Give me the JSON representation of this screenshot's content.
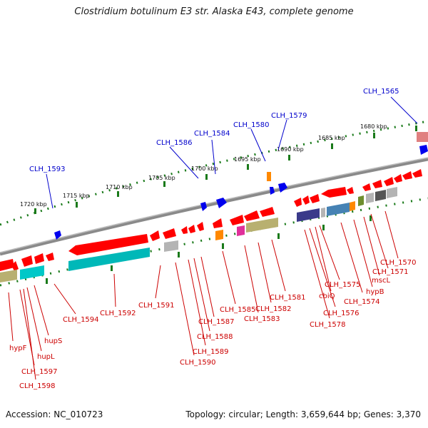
{
  "title": "Clostridium botulinum E3 str. Alaska E43, complete genome",
  "accession": "Accession: NC_010723",
  "summary": "Topology: circular; Length: 3,659,644 bp; Genes: 3,370",
  "ticks": [
    "1720 kbp",
    "1715 kbp",
    "1710 kbp",
    "1705 kbp",
    "1700 kbp",
    "1695 kbp",
    "1690 kbp",
    "1685 kbp",
    "1680 kbp"
  ],
  "top_labels": [
    "CLH_1593",
    "CLH_1586",
    "CLH_1584",
    "CLH_1580",
    "CLH_1579",
    "CLH_1565"
  ],
  "bottom_labels": [
    "hypF",
    "CLH_1597",
    "CLH_1598",
    "hupL",
    "hupS",
    "CLH_1594",
    "CLH_1592",
    "CLH_1591",
    "CLH_1590",
    "CLH_1589",
    "CLH_1588",
    "CLH_1587",
    "CLH_1585",
    "CLH_1583",
    "CLH_1582",
    "CLH_1581",
    "CLH_1578",
    "CLH_1576",
    "cbiQ",
    "CLH_1575",
    "CLH_1574",
    "hypB",
    "mscL",
    "CLH_1571",
    "CLH_1570"
  ],
  "colors": {
    "backbone": "#8a8a8a",
    "gene_red": "#ff0000",
    "cyan": "#00c8c8",
    "khaki": "#b8b070",
    "gray": "#b4b4b4",
    "blue_arrow": "#0000ee",
    "orange": "#ff8800",
    "magenta": "#e0309a",
    "navy": "#3a3a8a",
    "steel": "#4682b4",
    "olive": "#6e8e2e",
    "tick_green": "#1a7a1a",
    "top_label": "#0000cc",
    "bottom_label": "#cc0000"
  }
}
